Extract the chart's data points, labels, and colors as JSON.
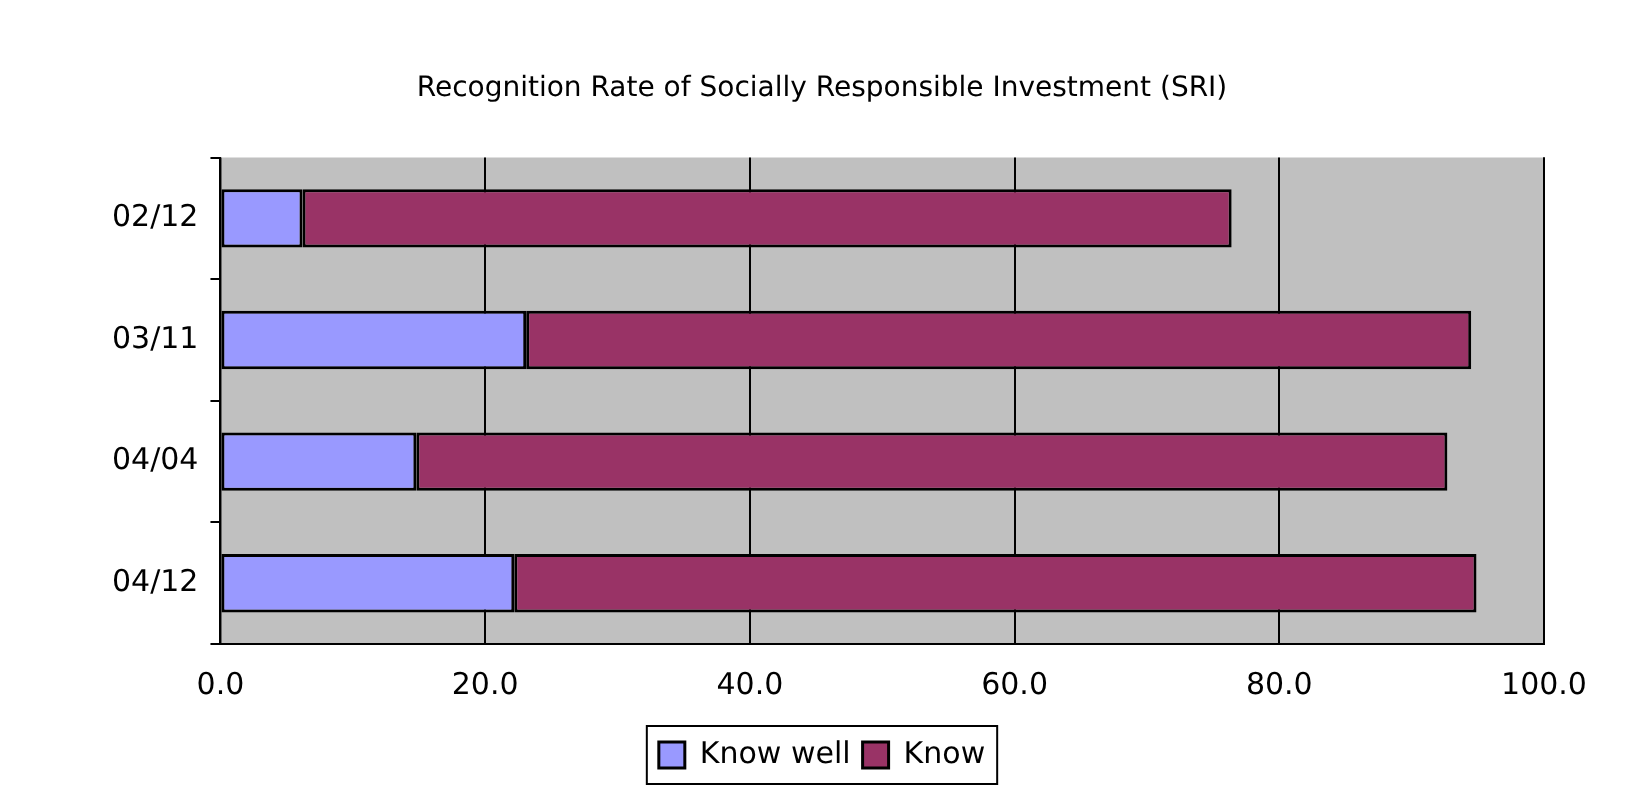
{
  "chart_data": {
    "type": "bar",
    "orientation": "horizontal",
    "stacked": true,
    "title": "Recognition Rate of Socially Responsible Investment (SRI)",
    "categories": [
      "02/12",
      "03/11",
      "04/04",
      "04/12"
    ],
    "series": [
      {
        "name": "Know well",
        "color": "#9999ff",
        "values": [
          6.2,
          23.1,
          14.8,
          22.2
        ]
      },
      {
        "name": "Know",
        "color": "#993366",
        "values": [
          70.2,
          71.4,
          77.9,
          72.7
        ]
      }
    ],
    "xlim": [
      0,
      100
    ],
    "xticks": [
      {
        "value": 0,
        "label": "0.0"
      },
      {
        "value": 20,
        "label": "20.0"
      },
      {
        "value": 40,
        "label": "40.0"
      },
      {
        "value": 60,
        "label": "60.0"
      },
      {
        "value": 80,
        "label": "80.0"
      },
      {
        "value": 100,
        "label": "100.0"
      }
    ],
    "grid": "x",
    "legend": "bottom"
  }
}
